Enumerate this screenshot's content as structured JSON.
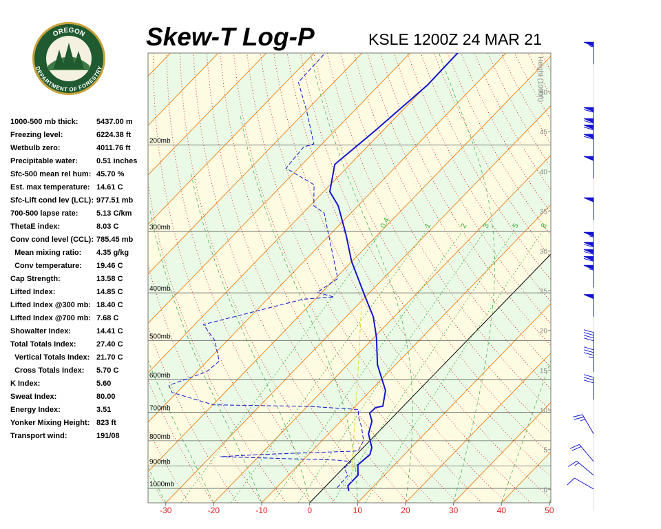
{
  "logo": {
    "top": "OREGON",
    "bottom": "DEPARTMENT OF FORESTRY"
  },
  "indices": [
    [
      "1000-500 mb thick:",
      "5437.00 m"
    ],
    [
      "Freezing level:",
      "6224.38 ft"
    ],
    [
      "Wetbulb zero:",
      "4011.76 ft"
    ],
    [
      "Precipitable water:",
      "0.51 inches"
    ],
    [
      "Sfc-500 mean rel hum:",
      "45.70 %"
    ],
    [
      "Est. max temperature:",
      "14.61 C"
    ],
    [
      "Sfc-Lift cond lev (LCL):",
      "977.51 mb"
    ],
    [
      "700-500 lapse rate:",
      "5.13 C/km"
    ],
    [
      "ThetaE index:",
      "8.03 C"
    ],
    [
      "Conv cond level (CCL):",
      "785.45 mb"
    ],
    [
      "  Mean mixing ratio:",
      "4.35 g/kg"
    ],
    [
      "  Conv temperature:",
      "19.46 C"
    ],
    [
      "Cap Strength:",
      "13.58 C"
    ],
    [
      "Lifted Index:",
      "14.85 C"
    ],
    [
      "Lifted Index @300 mb:",
      "18.40 C"
    ],
    [
      "Lifted Index @700 mb:",
      "7.68 C"
    ],
    [
      "Showalter Index:",
      "14.41 C"
    ],
    [
      "Total Totals Index:",
      "27.40 C"
    ],
    [
      "  Vertical Totals Index:",
      "21.70 C"
    ],
    [
      "  Cross Totals Index:",
      "5.70 C"
    ],
    [
      "K Index:",
      "5.60"
    ],
    [
      "Sweat Index:",
      "80.00"
    ],
    [
      "Energy Index:",
      "3.51"
    ],
    [
      "Yonker Mixing Height:",
      "823 ft"
    ],
    [
      "Transport wind:",
      "191/08"
    ]
  ],
  "chart_data": {
    "type": "skew-t",
    "title": "Skew-T Log-P",
    "subtitle": "KSLE 1200Z 24 MAR 21",
    "xlim": [
      -33.7,
      50.3
    ],
    "xticks": [
      -30,
      -20,
      -10,
      0,
      10,
      20,
      30,
      40,
      50
    ],
    "xtick_color": "#e02020",
    "ylim": [
      1070,
      130
    ],
    "log_y": true,
    "yticks": [
      {
        "value": 200,
        "label": "200mb"
      },
      {
        "value": 300,
        "label": "300mb"
      },
      {
        "value": 400,
        "label": "400mb"
      },
      {
        "value": 500,
        "label": "500mb"
      },
      {
        "value": 600,
        "label": "600mb"
      },
      {
        "value": 700,
        "label": "700mb"
      },
      {
        "value": 800,
        "label": "800mb"
      },
      {
        "value": 900,
        "label": "900mb"
      },
      {
        "value": 1000,
        "label": "1000mb"
      }
    ],
    "y2_label": "Height (1000ft)",
    "y2lim": [
      -1.7,
      54.9
    ],
    "y2ticks": [
      0,
      5,
      10,
      15,
      20,
      25,
      30,
      35,
      40,
      45,
      50
    ],
    "mixing_ratio_lines": [
      0.4,
      1,
      2,
      3,
      5,
      8
    ],
    "series": [
      {
        "color": "#1414d2",
        "style": "solid",
        "pressure": [
          1013,
          987,
          940,
          896,
          853,
          826,
          774,
          730,
          703,
          685,
          680,
          632,
          560,
          492,
          447,
          408,
          345,
          303,
          266,
          249,
          219,
          187,
          151,
          129
        ],
        "temperature": [
          5.8,
          4.5,
          4.5,
          2.4,
          2.8,
          1.8,
          -1.7,
          -3.5,
          -5.6,
          -5.5,
          -4.3,
          -6.9,
          -13.8,
          -19.6,
          -24.4,
          -30.0,
          -40.1,
          -46.9,
          -54.1,
          -58.7,
          -63.2,
          -61.6,
          -59.9,
          -60.1
        ]
      },
      {
        "color": "#1414d2",
        "style": "dashed",
        "pressure": [
          997,
          940,
          910,
          882,
          876,
          862,
          853,
          839,
          800,
          750,
          714,
          691,
          681,
          676,
          638,
          617,
          579,
          551,
          500,
          464,
          412,
          408,
          399,
          374,
          275,
          266,
          241,
          223,
          202,
          199,
          172,
          149,
          131
        ],
        "temperature": [
          2.7,
          2.4,
          0.2,
          0.3,
          -2.9,
          -28.0,
          -19.8,
          -0.4,
          -1.3,
          -4.5,
          -7.3,
          -8.7,
          -19.5,
          -39.9,
          -51.0,
          -53.1,
          -48.0,
          -47.5,
          -52.6,
          -58.2,
          -42.5,
          -36.5,
          -41.0,
          -39.5,
          -55.6,
          -59.2,
          -63.4,
          -72.6,
          -73.2,
          -71.7,
          -79.4,
          -87.4,
          -87.7
        ]
      },
      {
        "color": "#e8d830",
        "style": "dashed",
        "pressure": [
          971,
          750,
          579,
          405
        ],
        "temperature": [
          4.5,
          -6.0,
          -16.4,
          -31.0
        ]
      }
    ],
    "winds": {
      "color": "#1414d2",
      "pressure": [
        137,
        186,
        196,
        202,
        211,
        234,
        284,
        334,
        350,
        362,
        374,
        390,
        447,
        534,
        579,
        659,
        774,
        881,
        940,
        1003
      ],
      "direction": [
        360,
        360,
        360,
        360,
        360,
        360,
        360,
        360,
        360,
        360,
        360,
        360,
        360,
        360,
        360,
        360,
        330,
        320,
        310,
        300
      ],
      "speed": [
        55,
        60,
        60,
        60,
        60,
        50,
        50,
        55,
        60,
        60,
        60,
        55,
        50,
        40,
        35,
        30,
        25,
        20,
        15,
        10
      ]
    }
  }
}
